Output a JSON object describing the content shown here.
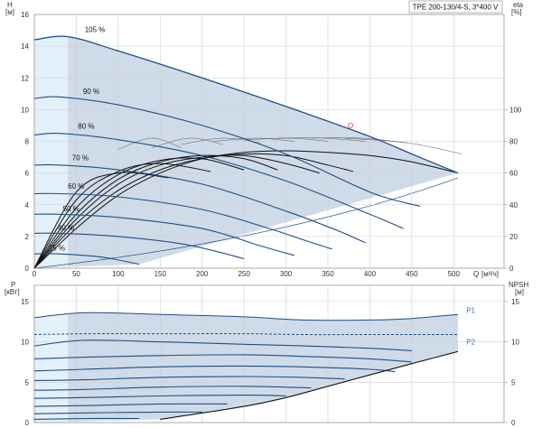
{
  "chart_data": [
    {
      "type": "line",
      "name_box": "TPE 200-130/4-S, 3*400 V",
      "xlabel": "Q",
      "xunit": "[м³/ч]",
      "ylabel_left": "H",
      "yunit_left": "[м]",
      "ylabel_right": "eta",
      "yunit_right": "[%]",
      "xlim": [
        0,
        560
      ],
      "ylim_left": [
        0,
        16
      ],
      "ylim_right": [
        0,
        100
      ],
      "x_ticks": [
        0,
        50,
        100,
        150,
        200,
        250,
        300,
        350,
        400,
        450,
        500
      ],
      "y_ticks_left": [
        0,
        2,
        4,
        6,
        8,
        10,
        12,
        14,
        16
      ],
      "y_ticks_right": [
        0,
        20,
        40,
        60,
        80,
        100
      ],
      "grid": true,
      "operating_point": {
        "x": 377,
        "y": 9.0
      },
      "series": [
        {
          "name": "105 %",
          "x": [
            0,
            40,
            100,
            200,
            300,
            400,
            450,
            505
          ],
          "y": [
            14.4,
            14.6,
            13.7,
            12.0,
            10.2,
            8.3,
            7.2,
            6.0
          ]
        },
        {
          "name": "90 %",
          "x": [
            0,
            30,
            100,
            200,
            300,
            400,
            460
          ],
          "y": [
            10.7,
            10.8,
            10.3,
            9.0,
            7.2,
            4.8,
            3.9
          ]
        },
        {
          "name": "80 %",
          "x": [
            0,
            30,
            100,
            200,
            300,
            400,
            440
          ],
          "y": [
            8.4,
            8.5,
            8.1,
            7.1,
            5.5,
            3.4,
            2.5
          ]
        },
        {
          "name": "70 %",
          "x": [
            0,
            30,
            100,
            200,
            300,
            360,
            395
          ],
          "y": [
            6.5,
            6.5,
            6.2,
            5.3,
            3.6,
            2.4,
            1.6
          ]
        },
        {
          "name": "60 %",
          "x": [
            0,
            30,
            100,
            200,
            280,
            320,
            355
          ],
          "y": [
            4.7,
            4.7,
            4.5,
            3.7,
            2.5,
            1.8,
            1.2
          ]
        },
        {
          "name": "50 %",
          "x": [
            0,
            30,
            100,
            200,
            270,
            310
          ],
          "y": [
            3.4,
            3.4,
            3.2,
            2.5,
            1.4,
            0.8
          ]
        },
        {
          "name": "40 %",
          "x": [
            0,
            30,
            100,
            180,
            250
          ],
          "y": [
            2.2,
            2.2,
            2.0,
            1.5,
            0.6
          ]
        },
        {
          "name": "25 %",
          "x": [
            0,
            30,
            80,
            125
          ],
          "y": [
            0.9,
            0.9,
            0.7,
            0.25
          ]
        }
      ],
      "efficiency_curves": [
        {
          "x": [
            0,
            50,
            100,
            150,
            200,
            250,
            300,
            350,
            400,
            450,
            505
          ],
          "y": [
            0,
            2.5,
            4.6,
            6.0,
            6.9,
            7.3,
            7.4,
            7.3,
            7.1,
            6.7,
            6.0
          ]
        },
        {
          "x": [
            0,
            50,
            100,
            150,
            200,
            250,
            300,
            350,
            380
          ],
          "y": [
            0,
            2.8,
            4.9,
            6.2,
            6.9,
            7.2,
            7.1,
            6.5,
            6.1
          ]
        },
        {
          "x": [
            0,
            50,
            100,
            150,
            200,
            250,
            300,
            340
          ],
          "y": [
            0,
            3.1,
            5.3,
            6.5,
            7.0,
            7.1,
            6.6,
            6.0
          ]
        },
        {
          "x": [
            0,
            50,
            100,
            150,
            200,
            250,
            290
          ],
          "y": [
            0,
            3.4,
            5.6,
            6.7,
            7.1,
            6.9,
            6.2
          ]
        },
        {
          "x": [
            0,
            50,
            100,
            150,
            200,
            250
          ],
          "y": [
            0,
            3.8,
            5.9,
            6.8,
            6.9,
            6.2
          ]
        },
        {
          "x": [
            0,
            50,
            100,
            150,
            210
          ],
          "y": [
            0,
            4.3,
            6.1,
            6.6,
            6.1
          ]
        },
        {
          "x": [
            0,
            50,
            100,
            160
          ],
          "y": [
            0,
            4.8,
            6.0,
            5.7
          ]
        }
      ],
      "peak_efficiency_arcs": [
        {
          "x": [
            100,
            140,
            175
          ],
          "y": [
            7.5,
            8.2,
            7.6
          ]
        },
        {
          "x": [
            140,
            185,
            225
          ],
          "y": [
            7.6,
            8.2,
            7.8
          ]
        },
        {
          "x": [
            175,
            225,
            270
          ],
          "y": [
            7.8,
            8.2,
            7.9
          ]
        },
        {
          "x": [
            215,
            265,
            310
          ],
          "y": [
            8.0,
            8.2,
            8.0
          ]
        },
        {
          "x": [
            255,
            305,
            350
          ],
          "y": [
            8.1,
            8.2,
            8.0
          ]
        },
        {
          "x": [
            290,
            345,
            395
          ],
          "y": [
            8.2,
            8.2,
            8.0
          ]
        },
        {
          "x": [
            330,
            390,
            445
          ],
          "y": [
            8.2,
            8.2,
            7.9
          ]
        },
        {
          "x": [
            370,
            445,
            510
          ],
          "y": [
            8.2,
            7.9,
            7.2
          ]
        }
      ]
    },
    {
      "type": "line",
      "ylabel_left": "P",
      "yunit_left": "[кВт]",
      "ylabel_right": "NPSH",
      "yunit_right": "[м]",
      "xlim": [
        0,
        560
      ],
      "ylim_left": [
        0,
        17
      ],
      "y_ticks_left": [
        0,
        5,
        10,
        15
      ],
      "y_ticks_right": [
        0,
        5,
        10,
        15
      ],
      "grid": true,
      "series": [
        {
          "name": "P1",
          "x": [
            0,
            60,
            150,
            250,
            320,
            400,
            450,
            505
          ],
          "y": [
            13.0,
            13.6,
            13.4,
            13.1,
            12.7,
            12.7,
            12.9,
            13.4
          ]
        },
        {
          "name": "P2",
          "x": [
            0,
            60,
            150,
            250,
            320,
            400,
            450,
            505
          ],
          "y": [
            10.9,
            11.0,
            11.0,
            11.0,
            10.9,
            10.9,
            10.9,
            10.9
          ]
        },
        {
          "name": "",
          "x": [
            0,
            60,
            150,
            250,
            320,
            400,
            450
          ],
          "y": [
            9.5,
            10.2,
            10.0,
            9.7,
            9.5,
            9.2,
            8.9
          ]
        },
        {
          "name": "",
          "x": [
            0,
            60,
            150,
            250,
            320,
            400,
            450
          ],
          "y": [
            7.9,
            8.1,
            8.3,
            8.4,
            8.2,
            7.9,
            7.5
          ]
        },
        {
          "name": "",
          "x": [
            0,
            60,
            150,
            250,
            320,
            400,
            430
          ],
          "y": [
            6.4,
            6.6,
            6.9,
            7.0,
            6.9,
            6.6,
            6.3
          ]
        },
        {
          "name": "",
          "x": [
            0,
            60,
            150,
            250,
            320,
            370
          ],
          "y": [
            5.2,
            5.3,
            5.6,
            5.7,
            5.6,
            5.4
          ]
        },
        {
          "name": "",
          "x": [
            0,
            60,
            150,
            250,
            330
          ],
          "y": [
            4.0,
            4.1,
            4.4,
            4.5,
            4.3
          ]
        },
        {
          "name": "",
          "x": [
            0,
            60,
            150,
            250,
            300
          ],
          "y": [
            3.0,
            3.1,
            3.3,
            3.4,
            3.3
          ]
        },
        {
          "name": "",
          "x": [
            0,
            60,
            150,
            230
          ],
          "y": [
            2.0,
            2.1,
            2.3,
            2.3
          ]
        },
        {
          "name": "",
          "x": [
            0,
            60,
            150,
            200
          ],
          "y": [
            1.1,
            1.2,
            1.3,
            1.3
          ]
        },
        {
          "name": "",
          "x": [
            0,
            60,
            125
          ],
          "y": [
            0.4,
            0.5,
            0.5
          ]
        }
      ],
      "npsh_curve": {
        "x": [
          150,
          250,
          300,
          350,
          400,
          450,
          505
        ],
        "y": [
          0.4,
          2.0,
          3.1,
          4.5,
          5.9,
          7.3,
          8.8
        ]
      }
    }
  ],
  "colors": {
    "grid": "#cfcfcf",
    "fill": "#cfdbe8",
    "fill_left": "#e4f0fa",
    "curve": "#1f4f86",
    "eff": "#111111",
    "operating_point": "#e05050",
    "power": "#3c76b0"
  }
}
